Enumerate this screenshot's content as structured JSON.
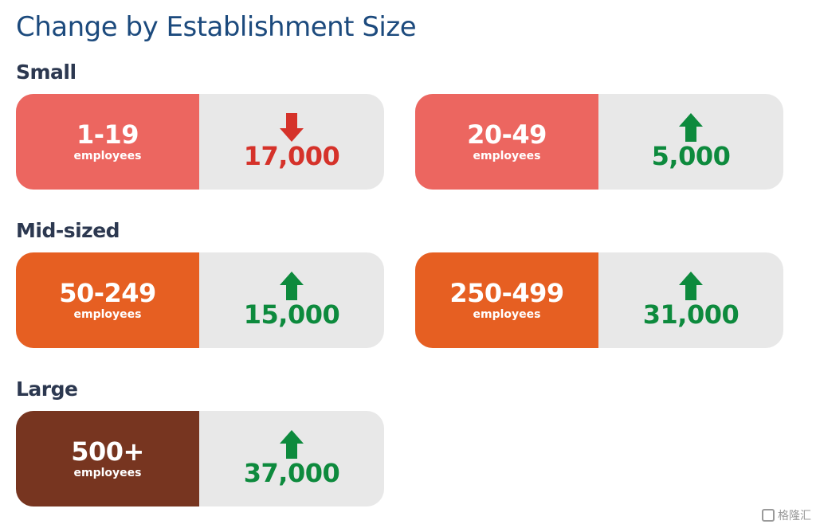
{
  "title": "Change by Establishment Size",
  "colors": {
    "small": "#ec6660",
    "mid": "#e65f22",
    "large": "#773520",
    "up": "#0d8a3d",
    "down": "#d5322a",
    "panel": "#e8e8e8"
  },
  "watermark": "格隆汇",
  "chart_data": {
    "type": "table",
    "title": "Change by Establishment Size",
    "groups": [
      {
        "label": "Small",
        "items": [
          {
            "size": "1-19",
            "unit": "employees",
            "direction": "down",
            "change_label": "17,000",
            "change": -17000,
            "color_key": "small"
          },
          {
            "size": "20-49",
            "unit": "employees",
            "direction": "up",
            "change_label": "5,000",
            "change": 5000,
            "color_key": "small"
          }
        ]
      },
      {
        "label": "Mid-sized",
        "items": [
          {
            "size": "50-249",
            "unit": "employees",
            "direction": "up",
            "change_label": "15,000",
            "change": 15000,
            "color_key": "mid"
          },
          {
            "size": "250-499",
            "unit": "employees",
            "direction": "up",
            "change_label": "31,000",
            "change": 31000,
            "color_key": "mid"
          }
        ]
      },
      {
        "label": "Large",
        "items": [
          {
            "size": "500+",
            "unit": "employees",
            "direction": "up",
            "change_label": "37,000",
            "change": 37000,
            "color_key": "large"
          }
        ]
      }
    ]
  }
}
